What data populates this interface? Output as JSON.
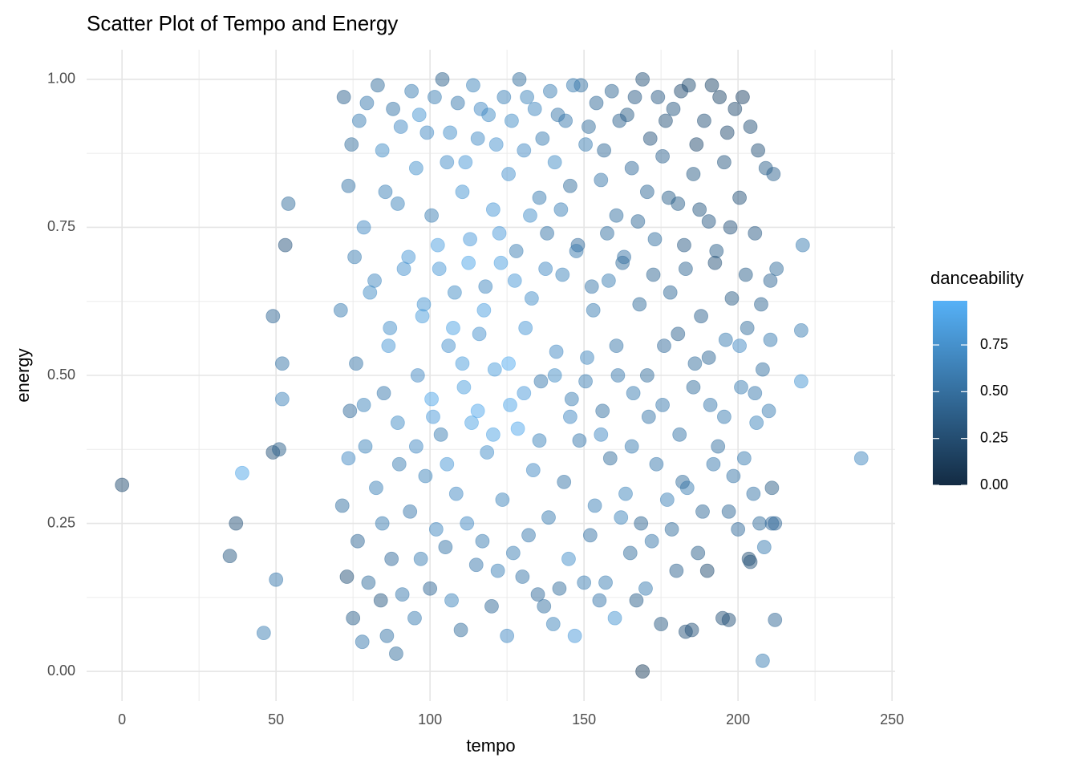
{
  "chart_data": {
    "type": "scatter",
    "title": "Scatter Plot of Tempo and Energy",
    "x_label": "tempo",
    "y_label": "energy",
    "xlim": [
      -11.5,
      251
    ],
    "ylim": [
      -0.05,
      1.05
    ],
    "xticks": [
      0,
      50,
      100,
      150,
      200,
      250
    ],
    "xminor": [
      25,
      75,
      125,
      175,
      225
    ],
    "yticks": [
      {
        "value": 0,
        "label": "0.00"
      },
      {
        "value": 0.25,
        "label": "0.25"
      },
      {
        "value": 0.5,
        "label": "0.50"
      },
      {
        "value": 0.75,
        "label": "0.75"
      },
      {
        "value": 1,
        "label": "1.00"
      }
    ],
    "yminor": [
      0.125,
      0.375,
      0.625,
      0.875
    ],
    "grid": true,
    "point_opacity": 0.5,
    "colorbar": {
      "title": "danceability",
      "low_color": "#132B43",
      "high_color": "#56B1F7",
      "limits": [
        0,
        0.986
      ],
      "ticks": [
        {
          "value": 0,
          "label": "0.00"
        },
        {
          "value": 0.25,
          "label": "0.25"
        },
        {
          "value": 0.5,
          "label": "0.50"
        },
        {
          "value": 0.75,
          "label": "0.75"
        }
      ]
    },
    "x": [
      72,
      73.5,
      71,
      74,
      71.5,
      73,
      77,
      78.5,
      76,
      79,
      76.5,
      78,
      83,
      84.5,
      82,
      85,
      82.5,
      84,
      88,
      89.5,
      87,
      90,
      87.5,
      89,
      94,
      95.5,
      93,
      96,
      93.5,
      95,
      99,
      100.5,
      98,
      101,
      98.5,
      100,
      104,
      105.5,
      103,
      106,
      103.5,
      105,
      109,
      110.5,
      108,
      111,
      108.5,
      110,
      114,
      115.5,
      113,
      116,
      113.5,
      115,
      119,
      120.5,
      118,
      121,
      118.5,
      120,
      124,
      125.5,
      123,
      126,
      123.5,
      125,
      129,
      130.5,
      128,
      131,
      128.5,
      130,
      134,
      135.5,
      133,
      136,
      133.5,
      135,
      139,
      140.5,
      138,
      141,
      138.5,
      140,
      144,
      145.5,
      143,
      146,
      143.5,
      145,
      149,
      150.5,
      148,
      151,
      148.5,
      150,
      154,
      155.5,
      153,
      156,
      153.5,
      155,
      159,
      160.5,
      158,
      161,
      158.5,
      160,
      164,
      165.5,
      163,
      166,
      163.5,
      165,
      169,
      170.5,
      168,
      171,
      168.5,
      170,
      174,
      175.5,
      173,
      176,
      173.5,
      175,
      179,
      180.5,
      178,
      181,
      178.5,
      180,
      184,
      185.5,
      183,
      186,
      183.5,
      185,
      189,
      190.5,
      188,
      191,
      188.5,
      190,
      194,
      195.5,
      193,
      196,
      193.5,
      195,
      199,
      200.5,
      198,
      201,
      198.5,
      200,
      204,
      205.5,
      203,
      206,
      203.5,
      205,
      209,
      210.5,
      208,
      211,
      208.5,
      210,
      74.5,
      75.5,
      73.5,
      75,
      79.5,
      80.5,
      78.5,
      80,
      85.5,
      86.5,
      84.5,
      86,
      90.5,
      91.5,
      89.5,
      91,
      96.5,
      97.5,
      95.5,
      97,
      101.5,
      102.5,
      100.5,
      102,
      106.5,
      107.5,
      105.5,
      107,
      111.5,
      112.5,
      110.5,
      112,
      116.5,
      117.5,
      115.5,
      117,
      121.5,
      122.5,
      120.5,
      122,
      126.5,
      127.5,
      125.5,
      127,
      131.5,
      132.5,
      130.5,
      132,
      136.5,
      137.5,
      135.5,
      137,
      141.5,
      142.5,
      140.5,
      142,
      146.5,
      147.5,
      145.5,
      147,
      151.5,
      152.5,
      150.5,
      152,
      156.5,
      157.5,
      155.5,
      157,
      161.5,
      162.5,
      160.5,
      162,
      166.5,
      167.5,
      165.5,
      167,
      171.5,
      172.5,
      170.5,
      172,
      176.5,
      177.5,
      175.5,
      177,
      181.5,
      182.5,
      180.5,
      182,
      186.5,
      187.5,
      185.5,
      187,
      191.5,
      192.5,
      190.5,
      192,
      196.5,
      197.5,
      195.5,
      197,
      201.5,
      202.5,
      200.5,
      202,
      206.5,
      207.5,
      205.5,
      207,
      211.5,
      212.5,
      210.5,
      212,
      0,
      39,
      240,
      169,
      221,
      220.5,
      220.5,
      35,
      37,
      46,
      50,
      49,
      49,
      51,
      52,
      52,
      53,
      54,
      208,
      212,
      197,
      211,
      204,
      183
    ],
    "values": [
      0.97,
      0.82,
      0.61,
      0.44,
      0.28,
      0.16,
      0.93,
      0.75,
      0.52,
      0.38,
      0.22,
      0.05,
      0.99,
      0.88,
      0.66,
      0.47,
      0.31,
      0.12,
      0.95,
      0.79,
      0.58,
      0.35,
      0.19,
      0.03,
      0.98,
      0.85,
      0.7,
      0.5,
      0.27,
      0.09,
      0.91,
      0.77,
      0.62,
      0.43,
      0.33,
      0.14,
      1.0,
      0.86,
      0.68,
      0.55,
      0.4,
      0.21,
      0.96,
      0.81,
      0.64,
      0.48,
      0.3,
      0.07,
      0.99,
      0.9,
      0.73,
      0.57,
      0.42,
      0.18,
      0.94,
      0.78,
      0.65,
      0.51,
      0.37,
      0.11,
      0.97,
      0.84,
      0.69,
      0.45,
      0.29,
      0.06,
      1.0,
      0.88,
      0.71,
      0.58,
      0.41,
      0.16,
      0.95,
      0.8,
      0.63,
      0.49,
      0.34,
      0.13,
      0.98,
      0.86,
      0.74,
      0.54,
      0.26,
      0.08,
      0.93,
      0.82,
      0.67,
      0.46,
      0.32,
      0.19,
      0.99,
      0.89,
      0.72,
      0.53,
      0.39,
      0.15,
      0.96,
      0.83,
      0.61,
      0.44,
      0.28,
      0.12,
      0.98,
      0.77,
      0.66,
      0.5,
      0.36,
      0.09,
      0.94,
      0.85,
      0.7,
      0.47,
      0.3,
      0.2,
      1.0,
      0.81,
      0.62,
      0.43,
      0.25,
      0.14,
      0.97,
      0.87,
      0.73,
      0.55,
      0.35,
      0.08,
      0.95,
      0.79,
      0.64,
      0.4,
      0.24,
      0.17,
      0.99,
      0.84,
      0.68,
      0.52,
      0.31,
      0.07,
      0.93,
      0.76,
      0.6,
      0.45,
      0.27,
      0.17,
      0.97,
      0.86,
      0.71,
      0.56,
      0.38,
      0.09,
      0.95,
      0.8,
      0.63,
      0.48,
      0.33,
      0.24,
      0.92,
      0.74,
      0.58,
      0.42,
      0.19,
      0.3,
      0.85,
      0.66,
      0.51,
      0.31,
      0.21,
      0.44,
      0.89,
      0.7,
      0.36,
      0.09,
      0.96,
      0.64,
      0.45,
      0.15,
      0.81,
      0.55,
      0.25,
      0.06,
      0.92,
      0.68,
      0.42,
      0.13,
      0.94,
      0.6,
      0.38,
      0.19,
      0.97,
      0.72,
      0.46,
      0.24,
      0.91,
      0.58,
      0.35,
      0.12,
      0.86,
      0.69,
      0.52,
      0.25,
      0.95,
      0.61,
      0.44,
      0.22,
      0.89,
      0.74,
      0.4,
      0.17,
      0.93,
      0.66,
      0.52,
      0.2,
      0.97,
      0.77,
      0.47,
      0.23,
      0.9,
      0.68,
      0.39,
      0.11,
      0.94,
      0.78,
      0.5,
      0.14,
      0.99,
      0.71,
      0.43,
      0.06,
      0.92,
      0.65,
      0.49,
      0.23,
      0.88,
      0.74,
      0.4,
      0.15,
      0.93,
      0.69,
      0.55,
      0.26,
      0.97,
      0.76,
      0.38,
      0.12,
      0.9,
      0.67,
      0.5,
      0.22,
      0.93,
      0.8,
      0.45,
      0.29,
      0.98,
      0.72,
      0.57,
      0.32,
      0.89,
      0.78,
      0.48,
      0.2,
      0.99,
      0.69,
      0.53,
      0.35,
      0.91,
      0.75,
      0.43,
      0.27,
      0.97,
      0.67,
      0.55,
      0.36,
      0.88,
      0.62,
      0.47,
      0.25,
      0.84,
      0.68,
      0.56,
      0.25,
      0.315,
      0.335,
      0.36,
      0,
      0.72,
      0.576,
      0.49,
      0.195,
      0.25,
      0.065,
      0.155,
      0.6,
      0.37,
      0.375,
      0.52,
      0.46,
      0.72,
      0.79,
      0.018,
      0.087,
      0.087,
      0.25,
      0.185,
      0.067
    ],
    "color_values": [
      0.42,
      0.55,
      0.6,
      0.48,
      0.52,
      0.3,
      0.62,
      0.7,
      0.55,
      0.66,
      0.45,
      0.58,
      0.5,
      0.72,
      0.68,
      0.58,
      0.64,
      0.35,
      0.55,
      0.66,
      0.74,
      0.62,
      0.48,
      0.5,
      0.6,
      0.75,
      0.8,
      0.7,
      0.57,
      0.6,
      0.7,
      0.62,
      0.78,
      0.82,
      0.66,
      0.45,
      0.4,
      0.73,
      0.8,
      0.76,
      0.62,
      0.55,
      0.58,
      0.78,
      0.72,
      0.85,
      0.7,
      0.5,
      0.66,
      0.71,
      0.82,
      0.76,
      0.88,
      0.57,
      0.72,
      0.8,
      0.68,
      0.84,
      0.74,
      0.46,
      0.64,
      0.76,
      0.86,
      0.9,
      0.66,
      0.7,
      0.5,
      0.7,
      0.62,
      0.8,
      0.92,
      0.55,
      0.68,
      0.6,
      0.74,
      0.58,
      0.7,
      0.48,
      0.62,
      0.72,
      0.55,
      0.7,
      0.6,
      0.66,
      0.58,
      0.5,
      0.66,
      0.62,
      0.55,
      0.74,
      0.52,
      0.6,
      0.48,
      0.68,
      0.58,
      0.62,
      0.46,
      0.56,
      0.6,
      0.52,
      0.64,
      0.57,
      0.44,
      0.52,
      0.62,
      0.58,
      0.5,
      0.78,
      0.38,
      0.48,
      0.54,
      0.6,
      0.66,
      0.5,
      0.3,
      0.46,
      0.5,
      0.56,
      0.44,
      0.6,
      0.36,
      0.42,
      0.52,
      0.48,
      0.58,
      0.35,
      0.34,
      0.4,
      0.46,
      0.55,
      0.5,
      0.42,
      0.28,
      0.38,
      0.44,
      0.5,
      0.62,
      0.3,
      0.3,
      0.36,
      0.42,
      0.58,
      0.46,
      0.25,
      0.22,
      0.34,
      0.4,
      0.6,
      0.52,
      0.3,
      0.26,
      0.3,
      0.38,
      0.62,
      0.55,
      0.48,
      0.3,
      0.36,
      0.5,
      0.66,
      0.28,
      0.55,
      0.4,
      0.45,
      0.52,
      0.38,
      0.6,
      0.62,
      0.5,
      0.6,
      0.7,
      0.4,
      0.58,
      0.72,
      0.66,
      0.5,
      0.64,
      0.8,
      0.6,
      0.55,
      0.7,
      0.76,
      0.72,
      0.58,
      0.78,
      0.84,
      0.7,
      0.62,
      0.62,
      0.86,
      0.9,
      0.68,
      0.74,
      0.88,
      0.8,
      0.66,
      0.8,
      0.9,
      0.84,
      0.7,
      0.7,
      0.86,
      0.92,
      0.6,
      0.76,
      0.82,
      0.88,
      0.64,
      0.72,
      0.8,
      0.94,
      0.62,
      0.66,
      0.74,
      0.82,
      0.58,
      0.6,
      0.7,
      0.66,
      0.52,
      0.56,
      0.64,
      0.72,
      0.5,
      0.6,
      0.58,
      0.7,
      0.82,
      0.5,
      0.56,
      0.62,
      0.54,
      0.46,
      0.52,
      0.7,
      0.62,
      0.42,
      0.5,
      0.56,
      0.66,
      0.36,
      0.46,
      0.6,
      0.4,
      0.32,
      0.44,
      0.5,
      0.56,
      0.3,
      0.4,
      0.58,
      0.64,
      0.26,
      0.36,
      0.42,
      0.5,
      0.24,
      0.34,
      0.5,
      0.4,
      0.22,
      0.3,
      0.46,
      0.58,
      0.26,
      0.32,
      0.6,
      0.46,
      0.2,
      0.4,
      0.7,
      0.6,
      0.3,
      0.44,
      0.58,
      0.5,
      0.42,
      0.5,
      0.6,
      0.45,
      0.25,
      0.9,
      0.68,
      0.15,
      0.6,
      0.62,
      0.78,
      0.35,
      0.3,
      0.62,
      0.58,
      0.45,
      0.3,
      0.4,
      0.55,
      0.65,
      0.32,
      0.5,
      0.62,
      0.45,
      0.3,
      0.48,
      0.3,
      0.3
    ]
  }
}
